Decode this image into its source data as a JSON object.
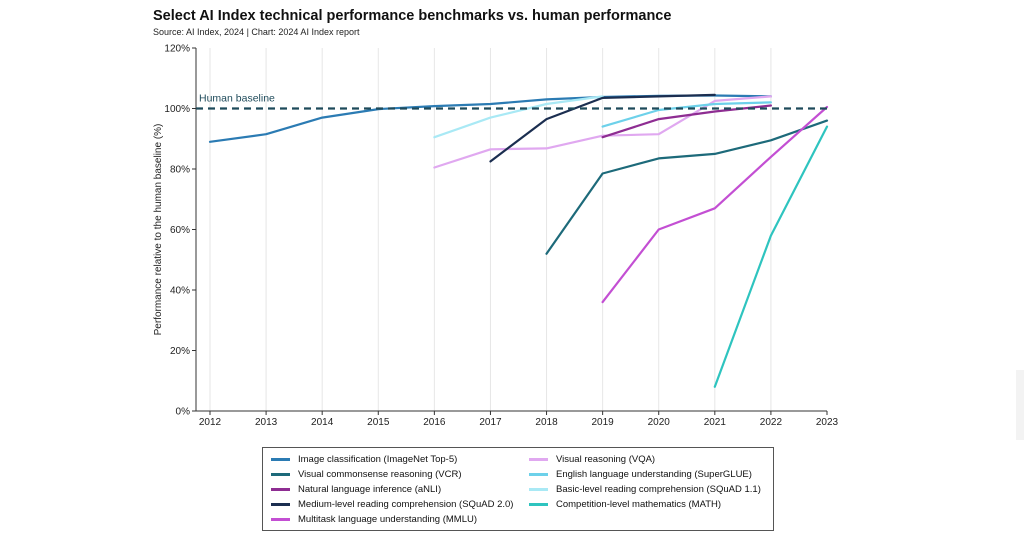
{
  "header": {
    "title": "Select AI Index technical performance benchmarks vs. human performance",
    "subtitle": "Source: AI Index, 2024 | Chart: 2024 AI Index report"
  },
  "chart_data": {
    "type": "line",
    "ylabel": "Performance relative to the human baseline (%)",
    "xlabel": "",
    "x": [
      2012,
      2013,
      2014,
      2015,
      2016,
      2017,
      2018,
      2019,
      2020,
      2021,
      2022,
      2023
    ],
    "x_tick_labels": [
      "2012",
      "2013",
      "2014",
      "2015",
      "2016",
      "2017",
      "2018",
      "2019",
      "2020",
      "2021",
      "2022",
      "2023"
    ],
    "ylim": [
      0,
      120
    ],
    "y_ticks": [
      0,
      20,
      40,
      60,
      80,
      100,
      120
    ],
    "y_tick_labels": [
      "0%",
      "20%",
      "40%",
      "60%",
      "80%",
      "100%",
      "120%"
    ],
    "grid": "vertical",
    "legend_position": "bottom",
    "baseline": {
      "label": "Human baseline",
      "value": 100,
      "color": "#1e4a5a"
    },
    "series": [
      {
        "name": "Image classification (ImageNet Top-5)",
        "color": "#2b7bb3",
        "x": [
          2012,
          2013,
          2014,
          2015,
          2016,
          2017,
          2018,
          2019,
          2020,
          2021,
          2022
        ],
        "values": [
          89,
          91.5,
          97,
          99.8,
          100.8,
          101.5,
          103,
          103.8,
          104.2,
          104.3,
          104
        ]
      },
      {
        "name": "Visual reasoning (VQA)",
        "color": "#e0a8f0",
        "x": [
          2016,
          2017,
          2018,
          2019,
          2020,
          2021,
          2022
        ],
        "values": [
          80.5,
          86.5,
          86.8,
          91,
          91.5,
          102.5,
          104
        ]
      },
      {
        "name": "Visual commonsense reasoning (VCR)",
        "color": "#1d6a7a",
        "x": [
          2018,
          2019,
          2020,
          2021,
          2022,
          2023
        ],
        "values": [
          52,
          78.5,
          83.5,
          85,
          89.5,
          96
        ]
      },
      {
        "name": "English language understanding (SuperGLUE)",
        "color": "#6dd1ea",
        "x": [
          2019,
          2020,
          2021,
          2022
        ],
        "values": [
          94,
          99.5,
          101.5,
          102
        ]
      },
      {
        "name": "Natural language inference (aNLI)",
        "color": "#8e2d92",
        "x": [
          2019,
          2020,
          2021,
          2022
        ],
        "values": [
          90.5,
          96.5,
          99,
          101
        ]
      },
      {
        "name": "Basic-level reading comprehension (SQuAD 1.1)",
        "color": "#a9e9f5",
        "x": [
          2016,
          2017,
          2018,
          2019
        ],
        "values": [
          90.5,
          97,
          101.5,
          104
        ]
      },
      {
        "name": "Medium-level reading comprehension (SQuAD 2.0)",
        "color": "#1b2e50",
        "x": [
          2017,
          2018,
          2019,
          2020,
          2021
        ],
        "values": [
          82.5,
          96.5,
          103.5,
          104,
          104.5
        ]
      },
      {
        "name": "Competition-level mathematics (MATH)",
        "color": "#2ec4bf",
        "x": [
          2021,
          2022,
          2023
        ],
        "values": [
          8,
          58,
          94
        ]
      },
      {
        "name": "Multitask language understanding (MMLU)",
        "color": "#c34fd3",
        "x": [
          2019,
          2020,
          2021,
          2022,
          2023
        ],
        "values": [
          36,
          60,
          67,
          84,
          100.5
        ]
      }
    ]
  }
}
